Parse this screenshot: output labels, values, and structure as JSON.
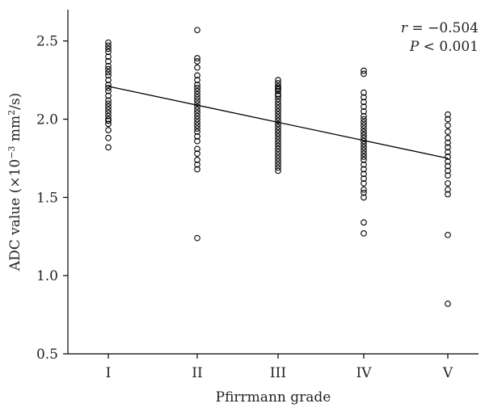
{
  "chart_data": {
    "type": "scatter",
    "title": "",
    "xlabel": "Pfirrmann grade",
    "ylabel": {
      "prefix": "ADC value (×10",
      "exp1": "−3",
      "mid": " mm",
      "exp2": "2",
      "suffix": "/s)"
    },
    "categories": [
      "I",
      "II",
      "III",
      "IV",
      "V"
    ],
    "ylim": [
      0.5,
      2.7
    ],
    "yticks": [
      "0.5",
      "1.0",
      "1.5",
      "2.0",
      "2.5"
    ],
    "grid": false,
    "annotations": {
      "r_label": "r",
      "r_value": " = −0.504",
      "p_label": "P",
      "p_value": " < 0.001"
    },
    "regression": {
      "start": [
        1,
        2.21
      ],
      "end": [
        5,
        1.75
      ]
    },
    "series": [
      {
        "category": "I",
        "values": [
          2.49,
          2.47,
          2.45,
          2.43,
          2.4,
          2.37,
          2.34,
          2.32,
          2.3,
          2.28,
          2.25,
          2.22,
          2.2,
          2.18,
          2.15,
          2.12,
          2.1,
          2.08,
          2.06,
          2.04,
          2.02,
          2.0,
          1.99,
          1.97,
          1.93,
          1.88,
          1.82
        ]
      },
      {
        "category": "II",
        "values": [
          2.57,
          2.39,
          2.37,
          2.33,
          2.28,
          2.25,
          2.22,
          2.2,
          2.18,
          2.16,
          2.14,
          2.12,
          2.1,
          2.08,
          2.06,
          2.04,
          2.02,
          2.0,
          1.98,
          1.96,
          1.94,
          1.92,
          1.89,
          1.86,
          1.81,
          1.78,
          1.74,
          1.71,
          1.68,
          1.24
        ]
      },
      {
        "category": "III",
        "values": [
          2.25,
          2.23,
          2.21,
          2.2,
          2.19,
          2.18,
          2.16,
          2.15,
          2.13,
          2.11,
          2.09,
          2.07,
          2.05,
          2.03,
          2.01,
          1.99,
          1.97,
          1.95,
          1.93,
          1.91,
          1.89,
          1.87,
          1.85,
          1.83,
          1.81,
          1.79,
          1.77,
          1.75,
          1.73,
          1.71,
          1.69,
          1.67
        ]
      },
      {
        "category": "IV",
        "values": [
          2.31,
          2.29,
          2.17,
          2.14,
          2.11,
          2.08,
          2.05,
          2.02,
          2.0,
          1.98,
          1.96,
          1.94,
          1.92,
          1.9,
          1.88,
          1.86,
          1.84,
          1.82,
          1.8,
          1.78,
          1.76,
          1.74,
          1.71,
          1.68,
          1.65,
          1.62,
          1.59,
          1.55,
          1.53,
          1.5,
          1.34,
          1.27
        ]
      },
      {
        "category": "V",
        "values": [
          2.03,
          2.0,
          1.96,
          1.92,
          1.88,
          1.85,
          1.82,
          1.79,
          1.76,
          1.73,
          1.7,
          1.67,
          1.64,
          1.59,
          1.55,
          1.52,
          1.26,
          0.82
        ]
      }
    ]
  }
}
